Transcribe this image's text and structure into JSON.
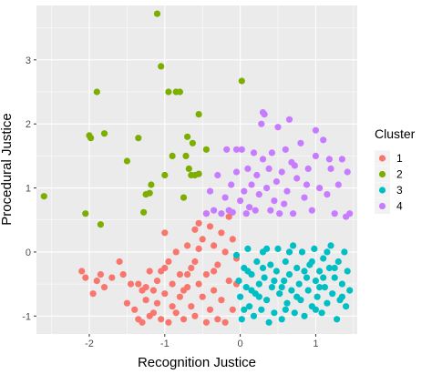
{
  "chart_data": {
    "type": "scatter",
    "xlabel": "Recognition Justice",
    "ylabel": "Procedural Justice",
    "xlim": [
      -2.7,
      1.55
    ],
    "ylim": [
      -1.28,
      3.85
    ],
    "x_ticks": [
      -2,
      -1,
      0,
      1
    ],
    "y_ticks": [
      -1,
      0,
      1,
      2,
      3
    ],
    "grid": true,
    "legend_title": "Cluster",
    "legend_position": "right",
    "series": [
      {
        "name": "1",
        "color": "#F8766D",
        "points": [
          [
            -2.1,
            -0.3
          ],
          [
            -2.05,
            -0.4
          ],
          [
            -1.95,
            -0.65
          ],
          [
            -1.9,
            -0.45
          ],
          [
            -1.85,
            -0.35
          ],
          [
            -1.8,
            -0.55
          ],
          [
            -1.7,
            -0.4
          ],
          [
            -1.6,
            -0.15
          ],
          [
            -1.55,
            -0.35
          ],
          [
            -1.45,
            -0.5
          ],
          [
            -1.4,
            -0.9
          ],
          [
            -1.35,
            -1.05
          ],
          [
            -1.3,
            -1.1
          ],
          [
            -1.25,
            -0.75
          ],
          [
            -1.25,
            -0.55
          ],
          [
            -1.2,
            -0.3
          ],
          [
            -1.2,
            -1.0
          ],
          [
            -1.15,
            -0.6
          ],
          [
            -1.1,
            -0.45
          ],
          [
            -1.1,
            -0.8
          ],
          [
            -1.05,
            -0.3
          ],
          [
            -1.05,
            -1.05
          ],
          [
            -1.0,
            -0.65
          ],
          [
            -1.0,
            0.3
          ],
          [
            -0.95,
            -0.15
          ],
          [
            -0.9,
            -0.5
          ],
          [
            -0.9,
            -0.85
          ],
          [
            -0.85,
            -0.95
          ],
          [
            -0.8,
            -0.35
          ],
          [
            -0.8,
            -0.7
          ],
          [
            -0.75,
            -1.05
          ],
          [
            -0.7,
            0.1
          ],
          [
            -0.7,
            -0.55
          ],
          [
            -0.65,
            -0.25
          ],
          [
            -0.65,
            -0.85
          ],
          [
            -0.6,
            0.35
          ],
          [
            -0.6,
            -1.0
          ],
          [
            -0.55,
            -0.5
          ],
          [
            -0.55,
            0.05
          ],
          [
            -0.5,
            -0.7
          ],
          [
            -0.5,
            0.2
          ],
          [
            -0.45,
            -1.1
          ],
          [
            -0.45,
            -0.35
          ],
          [
            -0.4,
            0.4
          ],
          [
            -0.4,
            -0.9
          ],
          [
            -0.35,
            -0.6
          ],
          [
            -0.35,
            0.1
          ],
          [
            -0.3,
            -1.05
          ],
          [
            -0.3,
            -0.2
          ],
          [
            -0.25,
            0.3
          ],
          [
            -0.25,
            -0.75
          ],
          [
            -0.2,
            -1.1
          ],
          [
            -0.15,
            -0.45
          ],
          [
            -0.15,
            0.55
          ],
          [
            -0.1,
            -0.9
          ],
          [
            -0.1,
            0.2
          ],
          [
            -0.05,
            -0.5
          ],
          [
            -0.05,
            -0.1
          ],
          [
            -1.5,
            -0.8
          ],
          [
            -1.3,
            -0.6
          ],
          [
            -1.0,
            -0.25
          ],
          [
            -0.85,
            0.0
          ],
          [
            -0.55,
            0.45
          ],
          [
            -0.35,
            -0.3
          ],
          [
            -0.2,
            0.0
          ],
          [
            -0.75,
            -0.6
          ],
          [
            -1.15,
            -0.95
          ],
          [
            -0.95,
            -1.1
          ],
          [
            -0.6,
            -0.15
          ],
          [
            -1.35,
            -0.5
          ],
          [
            -0.45,
            0.6
          ],
          [
            -0.7,
            -0.35
          ]
        ]
      },
      {
        "name": "2",
        "color": "#7CAE00",
        "points": [
          [
            -2.6,
            0.87
          ],
          [
            -2.05,
            0.6
          ],
          [
            -2.0,
            1.82
          ],
          [
            -1.98,
            1.78
          ],
          [
            -1.9,
            2.5
          ],
          [
            -1.85,
            0.43
          ],
          [
            -1.8,
            1.85
          ],
          [
            -1.5,
            1.42
          ],
          [
            -1.35,
            1.78
          ],
          [
            -1.28,
            0.62
          ],
          [
            -1.25,
            0.9
          ],
          [
            -1.2,
            0.92
          ],
          [
            -1.18,
            1.05
          ],
          [
            -1.1,
            3.72
          ],
          [
            -1.05,
            2.9
          ],
          [
            -1.0,
            1.2
          ],
          [
            -0.95,
            2.5
          ],
          [
            -0.85,
            2.5
          ],
          [
            -0.8,
            2.5
          ],
          [
            -0.75,
            0.85
          ],
          [
            -0.7,
            1.8
          ],
          [
            -0.68,
            1.3
          ],
          [
            -0.65,
            1.2
          ],
          [
            -0.63,
            1.7
          ],
          [
            -0.6,
            1.2
          ],
          [
            -0.55,
            1.22
          ],
          [
            -0.45,
            1.6
          ],
          [
            -0.9,
            1.5
          ],
          [
            -0.72,
            1.5
          ],
          [
            -0.55,
            2.15
          ],
          [
            0.02,
            2.67
          ]
        ]
      },
      {
        "name": "3",
        "color": "#00BFC4",
        "points": [
          [
            -0.05,
            -0.05
          ],
          [
            -0.02,
            -0.45
          ],
          [
            0.0,
            -0.7
          ],
          [
            0.02,
            -1.05
          ],
          [
            0.05,
            -0.25
          ],
          [
            0.08,
            -0.55
          ],
          [
            0.1,
            0.05
          ],
          [
            0.12,
            -0.85
          ],
          [
            0.15,
            -0.35
          ],
          [
            0.18,
            -1.0
          ],
          [
            0.2,
            -0.65
          ],
          [
            0.22,
            -0.15
          ],
          [
            0.25,
            -0.5
          ],
          [
            0.28,
            -0.9
          ],
          [
            0.3,
            0.0
          ],
          [
            0.32,
            -0.4
          ],
          [
            0.35,
            -0.75
          ],
          [
            0.38,
            -1.1
          ],
          [
            0.4,
            -0.2
          ],
          [
            0.42,
            -0.55
          ],
          [
            0.45,
            -0.95
          ],
          [
            0.48,
            -0.3
          ],
          [
            0.5,
            0.05
          ],
          [
            0.52,
            -0.65
          ],
          [
            0.55,
            -1.05
          ],
          [
            0.58,
            -0.45
          ],
          [
            0.6,
            -0.15
          ],
          [
            0.62,
            -0.8
          ],
          [
            0.65,
            -0.35
          ],
          [
            0.68,
            -0.6
          ],
          [
            0.7,
            0.1
          ],
          [
            0.72,
            -0.95
          ],
          [
            0.75,
            -0.25
          ],
          [
            0.78,
            -0.5
          ],
          [
            0.8,
            -0.75
          ],
          [
            0.82,
            0.0
          ],
          [
            0.85,
            -1.0
          ],
          [
            0.88,
            -0.4
          ],
          [
            0.9,
            -0.6
          ],
          [
            0.92,
            -0.2
          ],
          [
            0.95,
            -0.85
          ],
          [
            0.98,
            0.05
          ],
          [
            1.0,
            -0.45
          ],
          [
            1.02,
            -0.7
          ],
          [
            1.05,
            -0.3
          ],
          [
            1.08,
            -0.95
          ],
          [
            1.1,
            -0.1
          ],
          [
            1.12,
            -0.55
          ],
          [
            1.15,
            -0.8
          ],
          [
            1.18,
            -0.25
          ],
          [
            1.2,
            0.1
          ],
          [
            1.22,
            -0.65
          ],
          [
            1.25,
            -0.4
          ],
          [
            1.28,
            -1.05
          ],
          [
            1.3,
            -0.15
          ],
          [
            1.32,
            -0.75
          ],
          [
            1.35,
            -0.5
          ],
          [
            1.38,
            0.0
          ],
          [
            1.4,
            -0.85
          ],
          [
            1.42,
            -0.3
          ],
          [
            1.45,
            -0.6
          ],
          [
            0.05,
            -0.9
          ],
          [
            0.25,
            -0.7
          ],
          [
            0.55,
            -0.55
          ],
          [
            0.75,
            -0.7
          ],
          [
            1.05,
            -0.55
          ],
          [
            1.25,
            -0.25
          ],
          [
            0.35,
            0.05
          ],
          [
            0.65,
            0.0
          ],
          [
            0.95,
            -0.15
          ],
          [
            1.15,
            0.0
          ],
          [
            0.15,
            -0.6
          ],
          [
            0.45,
            -0.45
          ],
          [
            0.85,
            -0.3
          ],
          [
            1.35,
            -0.7
          ],
          [
            0.1,
            -0.3
          ],
          [
            0.6,
            -0.9
          ],
          [
            1.0,
            -0.9
          ],
          [
            0.3,
            -0.25
          ],
          [
            1.1,
            -0.4
          ]
        ]
      },
      {
        "name": "4",
        "color": "#C77CFF",
        "points": [
          [
            -0.45,
            0.6
          ],
          [
            -0.4,
            0.95
          ],
          [
            -0.35,
            0.65
          ],
          [
            -0.3,
            1.2
          ],
          [
            -0.25,
            0.6
          ],
          [
            -0.2,
            0.85
          ],
          [
            -0.18,
            1.6
          ],
          [
            -0.15,
            0.65
          ],
          [
            -0.12,
            1.05
          ],
          [
            -0.1,
            0.62
          ],
          [
            -0.05,
            1.25
          ],
          [
            0.0,
            0.8
          ],
          [
            0.02,
            1.6
          ],
          [
            0.05,
            0.95
          ],
          [
            0.08,
            0.6
          ],
          [
            0.1,
            1.3
          ],
          [
            0.12,
            0.7
          ],
          [
            0.15,
            1.05
          ],
          [
            0.18,
            1.55
          ],
          [
            0.2,
            0.65
          ],
          [
            0.22,
            1.2
          ],
          [
            0.25,
            0.9
          ],
          [
            0.28,
            2.0
          ],
          [
            0.3,
            2.18
          ],
          [
            0.32,
            2.15
          ],
          [
            0.35,
            1.0
          ],
          [
            0.38,
            1.3
          ],
          [
            0.4,
            0.65
          ],
          [
            0.42,
            1.55
          ],
          [
            0.45,
            0.8
          ],
          [
            0.48,
            1.1
          ],
          [
            0.5,
            1.95
          ],
          [
            0.52,
            0.6
          ],
          [
            0.55,
            1.25
          ],
          [
            0.58,
            0.75
          ],
          [
            0.6,
            1.6
          ],
          [
            0.62,
            0.95
          ],
          [
            0.65,
            2.07
          ],
          [
            0.68,
            1.4
          ],
          [
            0.7,
            0.6
          ],
          [
            0.75,
            1.15
          ],
          [
            0.8,
            1.7
          ],
          [
            0.85,
            0.85
          ],
          [
            0.9,
            1.3
          ],
          [
            0.95,
            0.65
          ],
          [
            1.0,
            1.5
          ],
          [
            1.05,
            1.0
          ],
          [
            1.1,
            1.75
          ],
          [
            1.15,
            0.9
          ],
          [
            1.2,
            1.3
          ],
          [
            1.25,
            0.6
          ],
          [
            1.3,
            1.05
          ],
          [
            1.35,
            1.45
          ],
          [
            1.4,
            0.55
          ],
          [
            1.42,
            1.25
          ],
          [
            1.45,
            0.6
          ],
          [
            0.72,
            1.35
          ],
          [
            1.0,
            1.9
          ],
          [
            1.18,
            1.45
          ],
          [
            0.88,
            1.05
          ],
          [
            -0.05,
            1.6
          ],
          [
            0.3,
            1.45
          ]
        ]
      }
    ]
  }
}
